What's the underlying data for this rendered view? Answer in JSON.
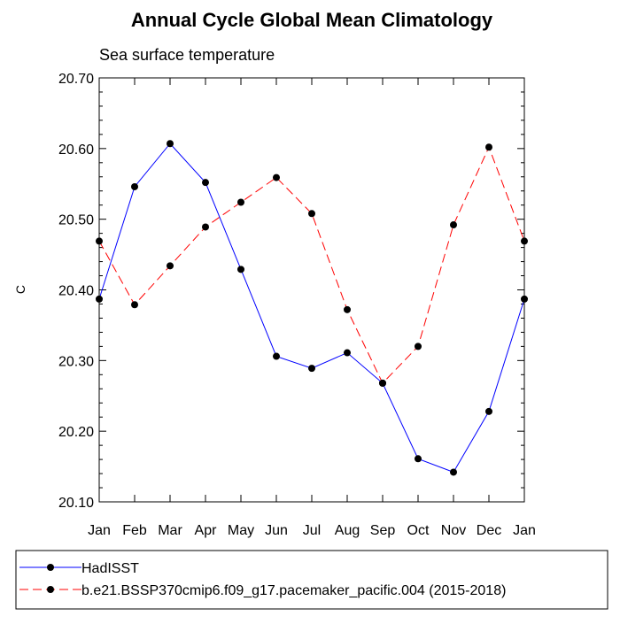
{
  "chart_data": {
    "type": "line",
    "title": "Annual Cycle Global Mean Climatology",
    "subtitle": "Sea surface temperature",
    "ylabel": "C",
    "xlabel": "",
    "categories": [
      "Jan",
      "Feb",
      "Mar",
      "Apr",
      "May",
      "Jun",
      "Jul",
      "Aug",
      "Sep",
      "Oct",
      "Nov",
      "Dec",
      "Jan"
    ],
    "ylim": [
      20.1,
      20.7
    ],
    "yticks": [
      20.1,
      20.2,
      20.3,
      20.4,
      20.5,
      20.6,
      20.7
    ],
    "ytick_labels": [
      "20.10",
      "20.20",
      "20.30",
      "20.40",
      "20.50",
      "20.60",
      "20.70"
    ],
    "series": [
      {
        "name": "HadISST",
        "color": "#0000ff",
        "dash": "solid",
        "values": [
          20.387,
          20.546,
          20.607,
          20.552,
          20.429,
          20.306,
          20.289,
          20.311,
          20.268,
          20.161,
          20.142,
          20.228,
          20.387
        ]
      },
      {
        "name": "b.e21.BSSP370cmip6.f09_g17.pacemaker_pacific.004 (2015-2018)",
        "color": "#ff0000",
        "dash": "dashed",
        "values": [
          20.469,
          20.379,
          20.434,
          20.489,
          20.524,
          20.559,
          20.508,
          20.372,
          20.268,
          20.32,
          20.492,
          20.602,
          20.469
        ]
      }
    ],
    "grid": false,
    "legend_position": "bottom"
  }
}
